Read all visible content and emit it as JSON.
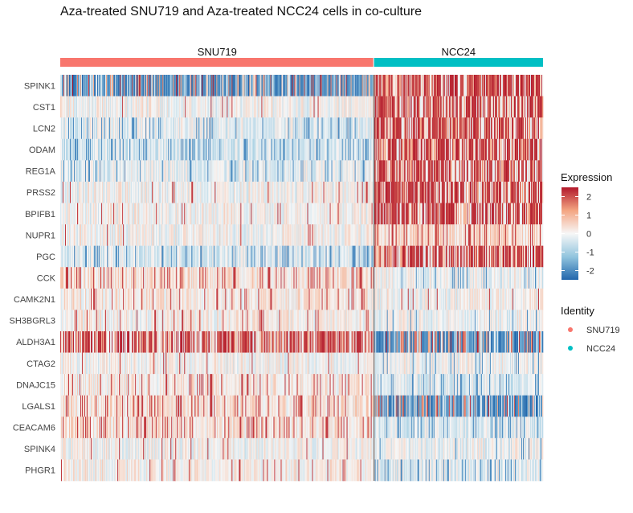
{
  "chart_data": {
    "type": "heatmap",
    "title": "Aza-treated SNU719 and Aza-treated NCC24 cells in co-culture",
    "genes": [
      "SPINK1",
      "CST1",
      "LCN2",
      "ODAM",
      "REG1A",
      "PRSS2",
      "BPIFB1",
      "NUPR1",
      "PGC",
      "CCK",
      "CAMK2N1",
      "SH3BGRL3",
      "ALDH3A1",
      "CTAG2",
      "DNAJC15",
      "LGALS1",
      "CEACAM6",
      "SPINK4",
      "PHGR1"
    ],
    "groups": [
      {
        "name": "SNU719",
        "color": "#F8766D",
        "cells": 390
      },
      {
        "name": "NCC24",
        "color": "#00BFC4",
        "cells": 210
      }
    ],
    "profile": {
      "SNU719": [
        -1.0,
        0.0,
        -0.2,
        -0.4,
        -0.2,
        0.0,
        0.0,
        0.0,
        -0.3,
        0.3,
        0.2,
        0.1,
        0.6,
        0.0,
        0.2,
        0.3,
        0.3,
        0.0,
        0.1
      ],
      "NCC24": [
        0.9,
        0.6,
        0.8,
        0.8,
        0.6,
        0.8,
        0.6,
        0.4,
        0.6,
        -0.1,
        0.0,
        -0.1,
        -0.6,
        -0.1,
        -0.3,
        -0.6,
        -0.3,
        -0.1,
        -0.2
      ]
    },
    "color_scale": {
      "low": "#2166AC",
      "mid": "#F7F7F7",
      "high": "#B2182B",
      "range": [
        -2.5,
        2.5
      ],
      "ticks": [
        2,
        1,
        0,
        -1,
        -2
      ]
    },
    "legend": {
      "expression_title": "Expression",
      "identity_title": "Identity",
      "identity_items": [
        {
          "label": "SNU719",
          "color": "#F8766D"
        },
        {
          "label": "NCC24",
          "color": "#00BFC4"
        }
      ],
      "placement": "right"
    }
  }
}
